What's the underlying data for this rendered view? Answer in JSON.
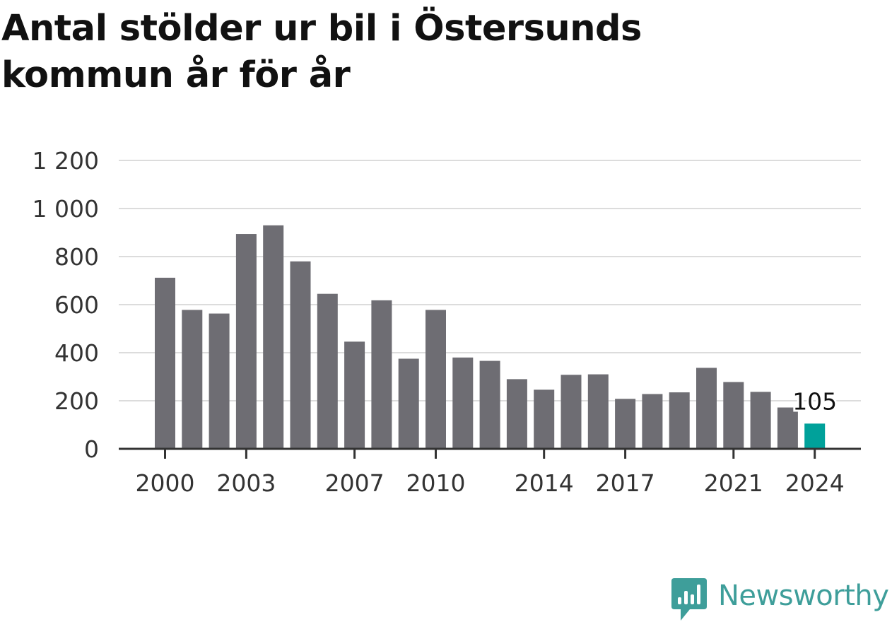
{
  "title": "Antal stölder ur bil i Östersunds kommun år för år",
  "brand": {
    "name": "Newsworthy",
    "icon": "newsworthy-logo-icon"
  },
  "colors": {
    "bar": "#6e6d73",
    "highlight": "#00a19a",
    "grid": "#dcdcdc",
    "axis": "#333333",
    "brand": "#3e9e9a"
  },
  "chart_data": {
    "type": "bar",
    "title": "Antal stölder ur bil i Östersunds kommun år för år",
    "xlabel": "",
    "ylabel": "",
    "categories": [
      "2000",
      "2001",
      "2002",
      "2003",
      "2004",
      "2005",
      "2006",
      "2007",
      "2008",
      "2009",
      "2010",
      "2011",
      "2012",
      "2013",
      "2014",
      "2015",
      "2016",
      "2017",
      "2018",
      "2019",
      "2020",
      "2021",
      "2022",
      "2023",
      "2024"
    ],
    "values": [
      712,
      578,
      563,
      894,
      930,
      780,
      645,
      446,
      618,
      375,
      578,
      380,
      366,
      290,
      246,
      308,
      310,
      208,
      228,
      235,
      337,
      278,
      237,
      172,
      105
    ],
    "ylim": [
      0,
      1200
    ],
    "yticks": [
      0,
      200,
      400,
      600,
      800,
      1000,
      1200
    ],
    "ytick_labels": [
      "0",
      "200",
      "400",
      "600",
      "800",
      "1 000",
      "1 200"
    ],
    "xtick_labels": [
      "2000",
      "2003",
      "2007",
      "2010",
      "2014",
      "2017",
      "2021",
      "2024"
    ],
    "highlight": {
      "category": "2024",
      "label": "105"
    },
    "grid": true,
    "legend": "none"
  }
}
